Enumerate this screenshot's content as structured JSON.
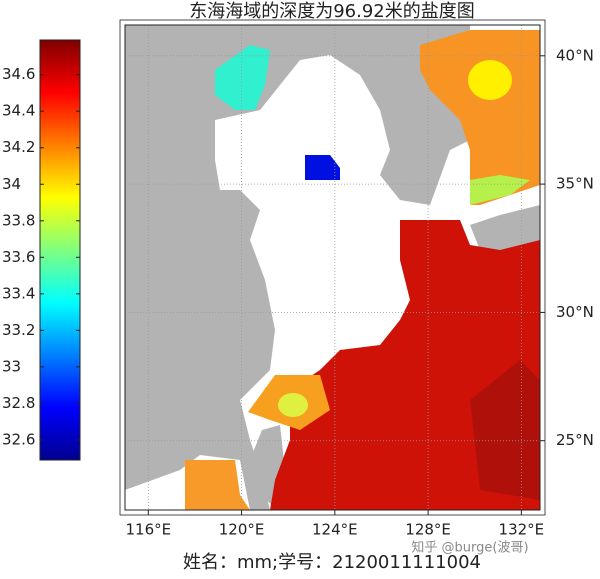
{
  "title": "东海海域的深度为96.92米的盐度图",
  "xlabel": "姓名：mm;学号：2120011111004",
  "watermark": "知乎 @burge(波哥)",
  "colorbar": {
    "clim": [
      32.49,
      34.79
    ],
    "ticks": [
      32.6,
      32.8,
      33,
      33.2,
      33.4,
      33.6,
      33.8,
      34,
      34.2,
      34.4,
      34.6
    ]
  },
  "map": {
    "xlim": [
      115,
      132.8
    ],
    "ylim": [
      22.3,
      41.2
    ],
    "xticks": [
      {
        "value": 116,
        "label": "116°E"
      },
      {
        "value": 120,
        "label": "120°E"
      },
      {
        "value": 124,
        "label": "124°E"
      },
      {
        "value": 128,
        "label": "128°E"
      },
      {
        "value": 132,
        "label": "132°E"
      }
    ],
    "yticks": [
      {
        "value": 25,
        "label": "25°N"
      },
      {
        "value": 30,
        "label": "30°N"
      },
      {
        "value": 35,
        "label": "35°N"
      },
      {
        "value": 40,
        "label": "40°N"
      }
    ]
  }
}
